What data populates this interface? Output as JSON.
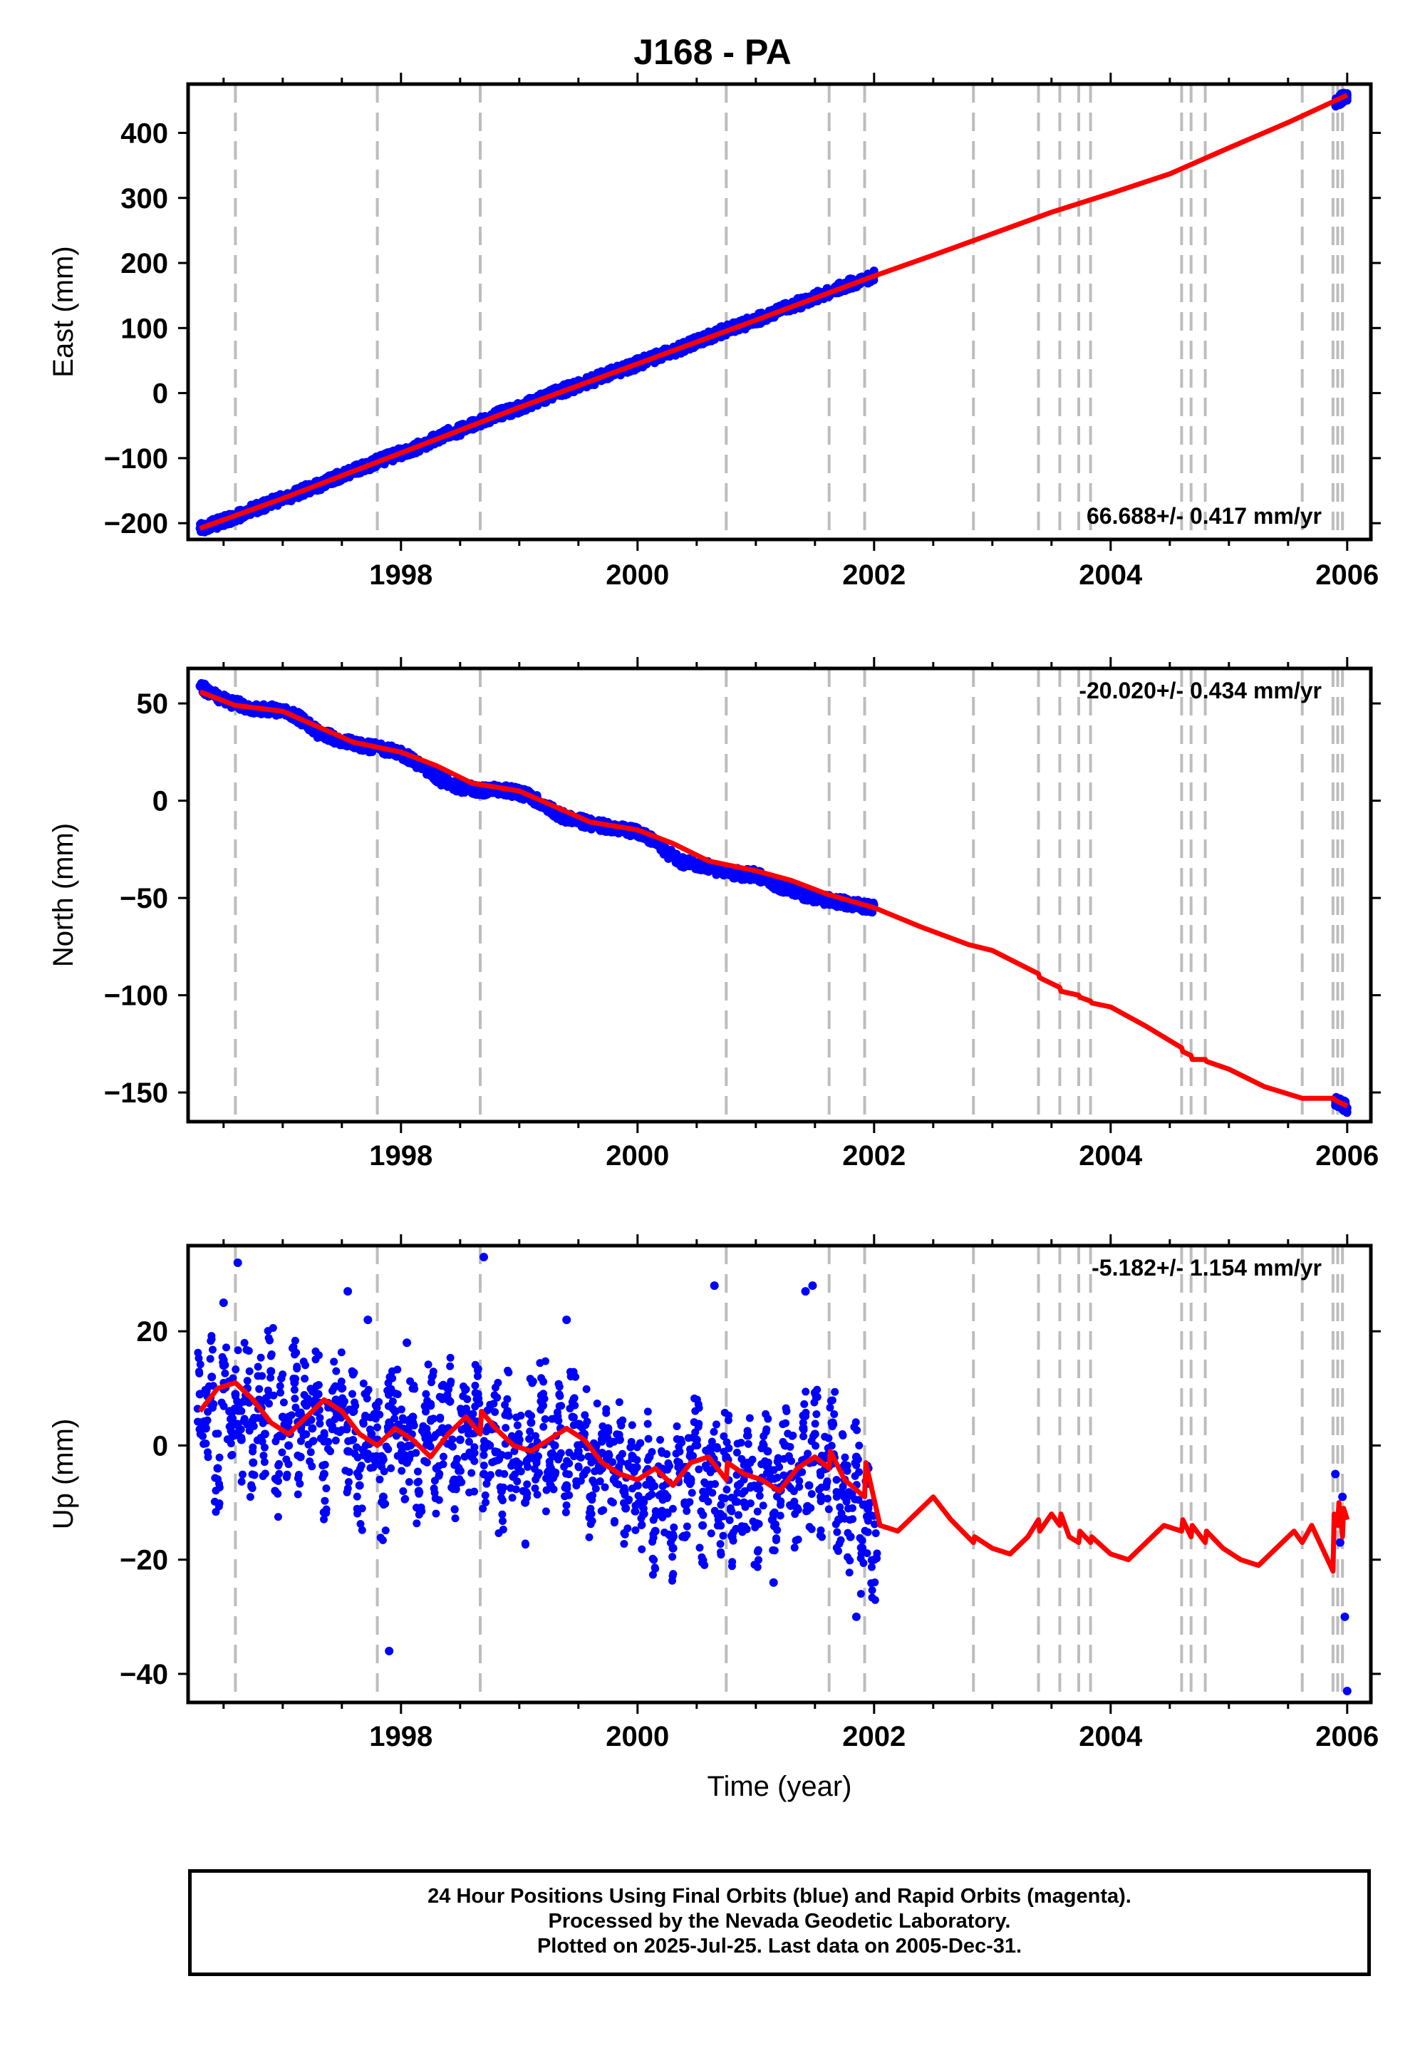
{
  "title": "J168 - PA",
  "footer": {
    "line1": "24 Hour Positions Using Final Orbits (blue) and Rapid Orbits (magenta).",
    "line2": "Processed by the Nevada Geodetic Laboratory.",
    "line3": "Plotted on 2025-Jul-25. Last data on 2005-Dec-31."
  },
  "colors": {
    "data": "#0000ff",
    "model": "#ff0000",
    "event_lines": "#bdbdbd",
    "frame": "#000000"
  },
  "chart_data": [
    {
      "type": "scatter",
      "ylabel": "East (mm)",
      "xlabel": "",
      "xlim": [
        1996.2,
        2006.2
      ],
      "ylim": [
        -225,
        475
      ],
      "xticks": [
        1998,
        2000,
        2002,
        2004,
        2006
      ],
      "yticks": [
        -200,
        -100,
        0,
        100,
        200,
        300,
        400
      ],
      "rate_label": "66.688+/- 0.417 mm/yr",
      "rate_position": "bottom-right",
      "grid": false,
      "event_lines": [
        1996.6,
        1997.8,
        1998.67,
        2000.75,
        2001.62,
        2001.92,
        2002.84,
        2003.39,
        2003.57,
        2003.73,
        2003.83,
        2004.6,
        2004.68,
        2004.8,
        2005.62,
        2005.88,
        2005.92,
        2005.96
      ],
      "series": [
        {
          "kind": "points",
          "x": [
            1996.3,
            1996.4,
            1996.5,
            1996.6,
            1996.7,
            1996.8,
            1996.9,
            1997.0,
            1997.1,
            1997.2,
            1997.3,
            1997.4,
            1997.5,
            1997.6,
            1997.7,
            1997.8,
            1997.9,
            1998.0,
            1998.1,
            1998.2,
            1998.3,
            1998.4,
            1998.5,
            1998.6,
            1998.7,
            1998.8,
            1998.9,
            1999.0,
            1999.1,
            1999.2,
            1999.3,
            1999.4,
            1999.5,
            1999.6,
            1999.7,
            1999.8,
            1999.9,
            2000.0,
            2000.1,
            2000.2,
            2000.3,
            2000.4,
            2000.5,
            2000.6,
            2000.7,
            2000.8,
            2000.9,
            2001.0,
            2001.1,
            2001.2,
            2001.3,
            2001.4,
            2001.5,
            2001.6,
            2001.7,
            2001.8,
            2001.9,
            2002.0,
            2005.9,
            2005.95,
            2006.0
          ],
          "y": [
            -208,
            -203,
            -196,
            -191,
            -182,
            -176,
            -168,
            -162,
            -156,
            -148,
            -142,
            -134,
            -126,
            -120,
            -113,
            -105,
            -99,
            -92,
            -86,
            -78,
            -70,
            -62,
            -57,
            -50,
            -42,
            -34,
            -29,
            -22,
            -15,
            -8,
            0,
            6,
            12,
            18,
            26,
            32,
            38,
            45,
            52,
            58,
            64,
            72,
            80,
            86,
            94,
            100,
            106,
            112,
            120,
            128,
            134,
            140,
            148,
            155,
            161,
            168,
            174,
            180,
            447,
            452,
            458
          ]
        },
        {
          "kind": "model",
          "x": [
            1996.3,
            1997.0,
            1998.0,
            1999.0,
            2000.0,
            2001.0,
            2002.0,
            2002.5,
            2003.0,
            2003.5,
            2004.0,
            2004.5,
            2005.0,
            2005.5,
            2006.0
          ],
          "y": [
            -208,
            -162,
            -92,
            -22,
            45,
            112,
            180,
            212,
            245,
            278,
            307,
            337,
            377,
            416,
            458
          ]
        }
      ]
    },
    {
      "type": "scatter",
      "ylabel": "North (mm)",
      "xlabel": "",
      "xlim": [
        1996.2,
        2006.2
      ],
      "ylim": [
        -165,
        68
      ],
      "xticks": [
        1998,
        2000,
        2002,
        2004,
        2006
      ],
      "yticks": [
        -150,
        -100,
        -50,
        0,
        50
      ],
      "rate_label": "-20.020+/- 0.434 mm/yr",
      "rate_position": "top-right",
      "grid": false,
      "event_lines": [
        1996.6,
        1997.8,
        1998.67,
        2000.75,
        2001.62,
        2001.92,
        2002.84,
        2003.39,
        2003.57,
        2003.73,
        2003.83,
        2004.6,
        2004.68,
        2004.8,
        2005.62,
        2005.88,
        2005.92,
        2005.96
      ],
      "series": [
        {
          "kind": "points",
          "x": [
            1996.3,
            1996.4,
            1996.5,
            1996.6,
            1996.7,
            1996.8,
            1996.9,
            1997.0,
            1997.1,
            1997.2,
            1997.3,
            1997.4,
            1997.5,
            1997.6,
            1997.7,
            1997.8,
            1997.9,
            1998.0,
            1998.1,
            1998.2,
            1998.3,
            1998.4,
            1998.5,
            1998.6,
            1998.7,
            1998.8,
            1998.9,
            1999.0,
            1999.1,
            1999.2,
            1999.3,
            1999.4,
            1999.5,
            1999.6,
            1999.7,
            1999.8,
            1999.9,
            2000.0,
            2000.1,
            2000.2,
            2000.3,
            2000.4,
            2000.5,
            2000.6,
            2000.7,
            2000.8,
            2000.9,
            2001.0,
            2001.1,
            2001.2,
            2001.3,
            2001.4,
            2001.5,
            2001.6,
            2001.7,
            2001.8,
            2001.9,
            2002.0,
            2005.9,
            2005.95,
            2006.0
          ],
          "y": [
            59,
            55,
            52,
            50,
            48,
            47,
            47,
            46,
            44,
            40,
            35,
            33,
            31,
            29,
            28,
            27,
            26,
            24,
            21,
            16,
            12,
            9,
            7,
            6,
            5,
            6,
            5,
            4,
            2,
            -2,
            -6,
            -9,
            -10,
            -12,
            -13,
            -14,
            -15,
            -16,
            -19,
            -24,
            -29,
            -32,
            -33,
            -34,
            -36,
            -37,
            -38,
            -38,
            -41,
            -44,
            -46,
            -48,
            -50,
            -51,
            -52,
            -53,
            -54,
            -55,
            -154,
            -156,
            -158
          ]
        },
        {
          "kind": "model",
          "x": [
            1996.3,
            1996.6,
            1997.0,
            1997.3,
            1997.6,
            1998.0,
            1998.3,
            1998.6,
            1999.0,
            1999.3,
            1999.6,
            2000.0,
            2000.3,
            2000.6,
            2001.0,
            2001.3,
            2001.6,
            2002.0,
            2002.4,
            2002.8,
            2003.0,
            2003.39,
            2003.4,
            2003.57,
            2003.58,
            2003.73,
            2003.74,
            2003.83,
            2003.84,
            2004.0,
            2004.3,
            2004.6,
            2004.61,
            2004.68,
            2004.69,
            2004.8,
            2004.81,
            2005.0,
            2005.3,
            2005.62,
            2005.88,
            2005.9,
            2006.0
          ],
          "y": [
            56,
            49,
            46,
            38,
            30,
            25,
            18,
            9,
            5,
            -3,
            -11,
            -15,
            -22,
            -31,
            -36,
            -41,
            -48,
            -55,
            -65,
            -74,
            -77,
            -89,
            -91,
            -96,
            -98,
            -100,
            -101,
            -103,
            -104,
            -106,
            -116,
            -127,
            -129,
            -131,
            -133,
            -133,
            -134,
            -138,
            -147,
            -153,
            -153,
            -154,
            -157
          ]
        }
      ]
    },
    {
      "type": "scatter",
      "ylabel": "Up (mm)",
      "xlabel": "Time (year)",
      "xlim": [
        1996.2,
        2006.2
      ],
      "ylim": [
        -45,
        35
      ],
      "xticks": [
        1998,
        2000,
        2002,
        2004,
        2006
      ],
      "yticks": [
        -40,
        -20,
        0,
        20
      ],
      "rate_label": "-5.182+/- 1.154 mm/yr",
      "rate_position": "top-right",
      "grid": false,
      "event_lines": [
        1996.6,
        1997.8,
        1998.67,
        2000.75,
        2001.62,
        2001.92,
        2002.84,
        2003.39,
        2003.57,
        2003.73,
        2003.83,
        2004.6,
        2004.68,
        2004.8,
        2005.62,
        2005.88,
        2005.92,
        2005.96
      ],
      "series": [
        {
          "kind": "points",
          "x": [
            1996.3,
            1996.35,
            1996.4,
            1996.45,
            1996.5,
            1996.55,
            1996.6,
            1996.65,
            1996.7,
            1996.75,
            1996.8,
            1996.85,
            1996.9,
            1996.95,
            1997.0,
            1997.05,
            1997.1,
            1997.15,
            1997.2,
            1997.25,
            1997.3,
            1997.35,
            1997.4,
            1997.45,
            1997.5,
            1997.55,
            1997.6,
            1997.65,
            1997.7,
            1997.75,
            1997.8,
            1997.85,
            1997.9,
            1997.95,
            1998.0,
            1998.05,
            1998.1,
            1998.15,
            1998.2,
            1998.25,
            1998.3,
            1998.35,
            1998.4,
            1998.45,
            1998.5,
            1998.55,
            1998.6,
            1998.65,
            1998.7,
            1998.75,
            1998.8,
            1998.85,
            1998.9,
            1998.95,
            1999.0,
            1999.05,
            1999.1,
            1999.15,
            1999.2,
            1999.25,
            1999.3,
            1999.35,
            1999.4,
            1999.45,
            1999.5,
            1999.55,
            1999.6,
            1999.65,
            1999.7,
            1999.75,
            1999.8,
            1999.85,
            1999.9,
            1999.95,
            2000.0,
            2000.05,
            2000.1,
            2000.15,
            2000.2,
            2000.25,
            2000.3,
            2000.35,
            2000.4,
            2000.45,
            2000.5,
            2000.55,
            2000.6,
            2000.65,
            2000.7,
            2000.75,
            2000.8,
            2000.85,
            2000.9,
            2000.95,
            2001.0,
            2001.05,
            2001.1,
            2001.15,
            2001.2,
            2001.25,
            2001.3,
            2001.35,
            2001.4,
            2001.45,
            2001.5,
            2001.55,
            2001.6,
            2001.65,
            2001.7,
            2001.75,
            2001.8,
            2001.85,
            2001.9,
            2001.95,
            2002.0,
            1996.5,
            1996.62,
            1997.55,
            1997.72,
            1997.9,
            1998.05,
            1998.7,
            1999.4,
            2000.65,
            2001.15,
            2001.42,
            2001.48,
            2001.85,
            2005.9,
            2005.92,
            2005.94,
            2005.96,
            2005.98,
            2006.0
          ],
          "y": [
            9,
            3,
            12,
            -4,
            14,
            6,
            9,
            1,
            10,
            -3,
            8,
            2,
            13,
            -6,
            5,
            0,
            11,
            -2,
            7,
            3,
            9,
            -5,
            4,
            8,
            10,
            -1,
            6,
            -7,
            5,
            2,
            1,
            -9,
            4,
            6,
            0,
            -3,
            5,
            -8,
            2,
            7,
            -4,
            3,
            8,
            -6,
            1,
            5,
            -2,
            9,
            -5,
            0,
            3,
            -8,
            6,
            -3,
            1,
            -10,
            4,
            -2,
            7,
            -5,
            0,
            3,
            -7,
            5,
            -1,
            2,
            -9,
            0,
            -4,
            3,
            -6,
            1,
            -11,
            -4,
            -7,
            -12,
            -2,
            -15,
            -5,
            -9,
            -18,
            -3,
            -10,
            -6,
            1,
            -14,
            -8,
            -4,
            -12,
            -2,
            -16,
            -7,
            -10,
            -3,
            -14,
            -6,
            -1,
            -12,
            -8,
            0,
            -5,
            -11,
            3,
            -7,
            2,
            -9,
            -4,
            4,
            -13,
            -6,
            -16,
            -2,
            -18,
            -11,
            -20,
            25,
            32,
            27,
            22,
            -36,
            18,
            33,
            22,
            28,
            -24,
            27,
            28,
            -30,
            -5,
            -13,
            -17,
            -9,
            -30,
            -43
          ]
        },
        {
          "kind": "model",
          "x": [
            1996.3,
            1996.45,
            1996.6,
            1996.75,
            1996.9,
            1997.05,
            1997.2,
            1997.35,
            1997.5,
            1997.65,
            1997.8,
            1997.95,
            1998.1,
            1998.25,
            1998.4,
            1998.55,
            1998.67,
            1998.68,
            1998.8,
            1998.95,
            1999.1,
            1999.25,
            1999.4,
            1999.55,
            1999.7,
            1999.85,
            2000.0,
            2000.15,
            2000.3,
            2000.45,
            2000.6,
            2000.75,
            2000.76,
            2000.9,
            2001.05,
            2001.2,
            2001.35,
            2001.5,
            2001.62,
            2001.63,
            2001.75,
            2001.92,
            2001.93,
            2002.05,
            2002.2,
            2002.35,
            2002.5,
            2002.65,
            2002.84,
            2002.85,
            2003.0,
            2003.15,
            2003.3,
            2003.39,
            2003.4,
            2003.5,
            2003.57,
            2003.58,
            2003.65,
            2003.73,
            2003.74,
            2003.83,
            2003.84,
            2004.0,
            2004.15,
            2004.3,
            2004.45,
            2004.6,
            2004.61,
            2004.68,
            2004.69,
            2004.8,
            2004.81,
            2004.95,
            2005.1,
            2005.25,
            2005.4,
            2005.55,
            2005.62,
            2005.7,
            2005.88,
            2005.89,
            2005.92,
            2005.93,
            2005.96,
            2005.97,
            2006.0
          ],
          "y": [
            6,
            10,
            11,
            8,
            4,
            2,
            5,
            8,
            6,
            2,
            0,
            3,
            1,
            -2,
            2,
            5,
            2,
            6,
            3,
            0,
            -1,
            1,
            3,
            1,
            -3,
            -5,
            -6,
            -4,
            -7,
            -3,
            -2,
            -6,
            -3,
            -5,
            -6,
            -8,
            -4,
            -2,
            -4,
            -1,
            -6,
            -9,
            -3,
            -14,
            -15,
            -12,
            -9,
            -13,
            -17,
            -16,
            -18,
            -19,
            -16,
            -13,
            -15,
            -12,
            -14,
            -12,
            -16,
            -17,
            -15,
            -17,
            -16,
            -19,
            -20,
            -17,
            -14,
            -15,
            -13,
            -16,
            -14,
            -17,
            -15,
            -18,
            -20,
            -21,
            -18,
            -15,
            -17,
            -14,
            -22,
            -12,
            -14,
            -10,
            -16,
            -11,
            -13
          ]
        }
      ]
    }
  ]
}
